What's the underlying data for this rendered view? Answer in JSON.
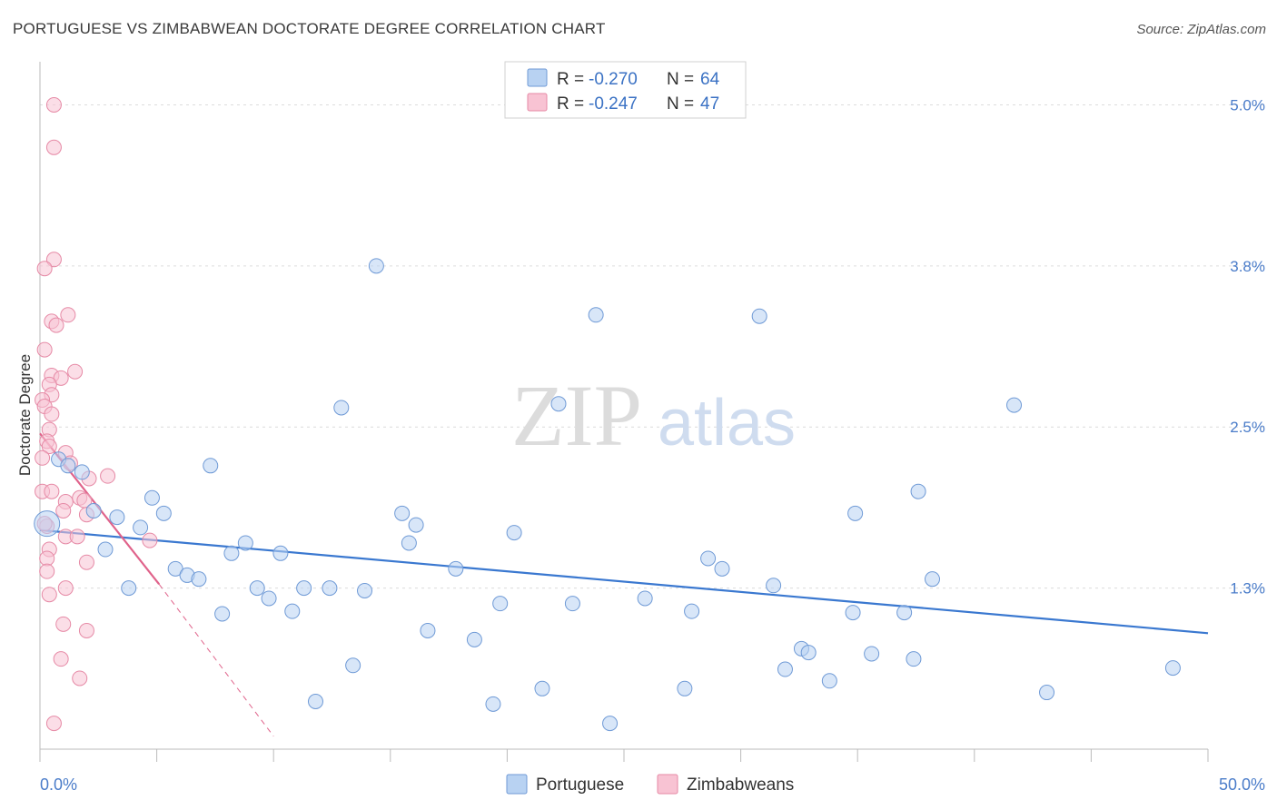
{
  "title": "PORTUGUESE VS ZIMBABWEAN DOCTORATE DEGREE CORRELATION CHART",
  "source": "Source: ZipAtlas.com",
  "watermark": {
    "zip": "ZIP",
    "atlas": "atlas"
  },
  "colors": {
    "portuguese_fill": "#b8d2f2",
    "portuguese_stroke": "#6f9ad6",
    "portuguese_line": "#3a78d0",
    "zimbabwean_fill": "#f8c3d3",
    "zimbabwean_stroke": "#e68aa6",
    "zimbabwean_line": "#e0638b",
    "grid": "#dcdcdc",
    "axis_label": "#4a7cc9"
  },
  "legend": {
    "rows": [
      {
        "r_label": "R = ",
        "r_value": "-0.270",
        "n_label": "N = ",
        "n_value": "64"
      },
      {
        "r_label": "R = ",
        "r_value": "-0.247",
        "n_label": "N = ",
        "n_value": "47"
      }
    ]
  },
  "chart_data": {
    "type": "scatter",
    "title": "PORTUGUESE VS ZIMBABWEAN DOCTORATE DEGREE CORRELATION CHART",
    "xlabel": "",
    "ylabel": "Doctorate Degree",
    "xlim": [
      0,
      50
    ],
    "ylim": [
      0,
      5.25
    ],
    "x_tick_labels": [
      "0.0%",
      "50.0%"
    ],
    "y_ticks": [
      {
        "value": 5.0,
        "label": "5.0%"
      },
      {
        "value": 3.75,
        "label": "3.8%"
      },
      {
        "value": 2.5,
        "label": "2.5%"
      },
      {
        "value": 1.25,
        "label": "1.3%"
      }
    ],
    "grid": true,
    "series": [
      {
        "name": "Portuguese",
        "R": -0.27,
        "N": 64,
        "trend": {
          "x": [
            0,
            50
          ],
          "y": [
            1.7,
            0.9
          ]
        },
        "points": [
          [
            0.3,
            1.75
          ],
          [
            0.8,
            2.25
          ],
          [
            1.2,
            2.2
          ],
          [
            1.8,
            2.15
          ],
          [
            2.3,
            1.85
          ],
          [
            2.8,
            1.55
          ],
          [
            3.3,
            1.8
          ],
          [
            3.8,
            1.25
          ],
          [
            4.3,
            1.72
          ],
          [
            4.8,
            1.95
          ],
          [
            5.3,
            1.83
          ],
          [
            5.8,
            1.4
          ],
          [
            6.3,
            1.35
          ],
          [
            6.8,
            1.32
          ],
          [
            7.3,
            2.2
          ],
          [
            7.8,
            1.05
          ],
          [
            8.2,
            1.52
          ],
          [
            8.8,
            1.6
          ],
          [
            9.3,
            1.25
          ],
          [
            9.8,
            1.17
          ],
          [
            10.3,
            1.52
          ],
          [
            10.8,
            1.07
          ],
          [
            11.3,
            1.25
          ],
          [
            11.8,
            0.37
          ],
          [
            12.4,
            1.25
          ],
          [
            12.9,
            2.65
          ],
          [
            13.4,
            0.65
          ],
          [
            13.9,
            1.23
          ],
          [
            14.4,
            3.75
          ],
          [
            15.5,
            1.83
          ],
          [
            15.8,
            1.6
          ],
          [
            16.1,
            1.74
          ],
          [
            16.6,
            0.92
          ],
          [
            17.8,
            1.4
          ],
          [
            18.6,
            0.85
          ],
          [
            19.4,
            0.35
          ],
          [
            19.7,
            1.13
          ],
          [
            20.3,
            1.68
          ],
          [
            21.5,
            0.47
          ],
          [
            22.2,
            2.68
          ],
          [
            22.8,
            1.13
          ],
          [
            23.8,
            3.37
          ],
          [
            24.4,
            0.2
          ],
          [
            25.9,
            1.17
          ],
          [
            27.6,
            0.47
          ],
          [
            27.9,
            1.07
          ],
          [
            28.6,
            1.48
          ],
          [
            29.2,
            1.4
          ],
          [
            30.8,
            3.36
          ],
          [
            31.4,
            1.27
          ],
          [
            31.9,
            0.62
          ],
          [
            32.6,
            0.78
          ],
          [
            32.9,
            0.75
          ],
          [
            33.8,
            0.53
          ],
          [
            34.8,
            1.06
          ],
          [
            34.9,
            1.83
          ],
          [
            35.6,
            0.74
          ],
          [
            37.0,
            1.06
          ],
          [
            37.4,
            0.7
          ],
          [
            37.6,
            2.0
          ],
          [
            38.2,
            1.32
          ],
          [
            43.1,
            0.44
          ],
          [
            41.7,
            2.67
          ],
          [
            48.5,
            0.63
          ]
        ]
      },
      {
        "name": "Zimbabweans",
        "R": -0.247,
        "N": 47,
        "trend": {
          "x": [
            0,
            5.1
          ],
          "y": [
            2.45,
            1.28
          ]
        },
        "trend_dashed": {
          "x": [
            5.1,
            10.0
          ],
          "y": [
            1.28,
            0.1
          ]
        },
        "points": [
          [
            0.6,
            5.0
          ],
          [
            0.6,
            4.67
          ],
          [
            0.6,
            3.8
          ],
          [
            0.2,
            3.73
          ],
          [
            0.5,
            3.32
          ],
          [
            0.7,
            3.29
          ],
          [
            1.2,
            3.37
          ],
          [
            0.2,
            3.1
          ],
          [
            0.5,
            2.9
          ],
          [
            0.9,
            2.88
          ],
          [
            1.5,
            2.93
          ],
          [
            0.4,
            2.83
          ],
          [
            0.5,
            2.75
          ],
          [
            0.1,
            2.71
          ],
          [
            0.2,
            2.66
          ],
          [
            0.5,
            2.6
          ],
          [
            0.4,
            2.48
          ],
          [
            0.3,
            2.39
          ],
          [
            0.4,
            2.35
          ],
          [
            1.1,
            2.3
          ],
          [
            0.1,
            2.26
          ],
          [
            1.3,
            2.22
          ],
          [
            2.1,
            2.1
          ],
          [
            2.9,
            2.12
          ],
          [
            0.1,
            2.0
          ],
          [
            0.5,
            2.0
          ],
          [
            1.1,
            1.92
          ],
          [
            1.7,
            1.95
          ],
          [
            1.9,
            1.93
          ],
          [
            1.0,
            1.85
          ],
          [
            2.0,
            1.82
          ],
          [
            0.3,
            1.73
          ],
          [
            1.1,
            1.65
          ],
          [
            1.6,
            1.65
          ],
          [
            4.7,
            1.62
          ],
          [
            0.4,
            1.55
          ],
          [
            0.3,
            1.48
          ],
          [
            2.0,
            1.45
          ],
          [
            0.3,
            1.38
          ],
          [
            1.1,
            1.25
          ],
          [
            0.4,
            1.2
          ],
          [
            1.0,
            0.97
          ],
          [
            2.0,
            0.92
          ],
          [
            0.9,
            0.7
          ],
          [
            1.7,
            0.55
          ],
          [
            0.6,
            0.2
          ],
          [
            0.2,
            1.75
          ]
        ]
      }
    ]
  }
}
